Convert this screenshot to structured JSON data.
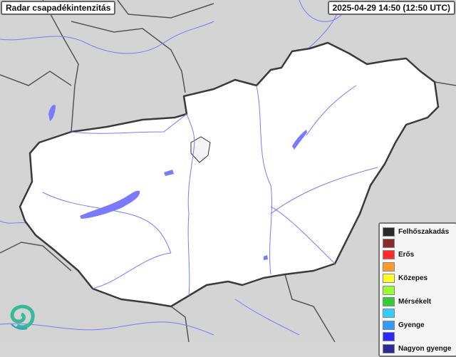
{
  "title": "Radar csapadékintenzitás",
  "timestamp": "2025-04-29 14:50 (12:50 UTC)",
  "legend": [
    {
      "label": "Felhőszakadás",
      "color": "#2b2b2b"
    },
    {
      "label": "",
      "color": "#8b2a2a"
    },
    {
      "label": "Erős",
      "color": "#ff2a2a"
    },
    {
      "label": "",
      "color": "#ff9a2a"
    },
    {
      "label": "Közepes",
      "color": "#ffff2a"
    },
    {
      "label": "",
      "color": "#99ff33"
    },
    {
      "label": "Mérsékelt",
      "color": "#33cc33"
    },
    {
      "label": "",
      "color": "#33ccff"
    },
    {
      "label": "Gyenge",
      "color": "#3399ff"
    },
    {
      "label": "",
      "color": "#2a2aff"
    },
    {
      "label": "Nagyon gyenge",
      "color": "#2a2a99"
    }
  ],
  "colors": {
    "country_fill": "#ffffff",
    "border": "#3a3a3a",
    "water": "#7a7aff",
    "background": "#d6d6d6"
  },
  "logo": "swirl-logo"
}
